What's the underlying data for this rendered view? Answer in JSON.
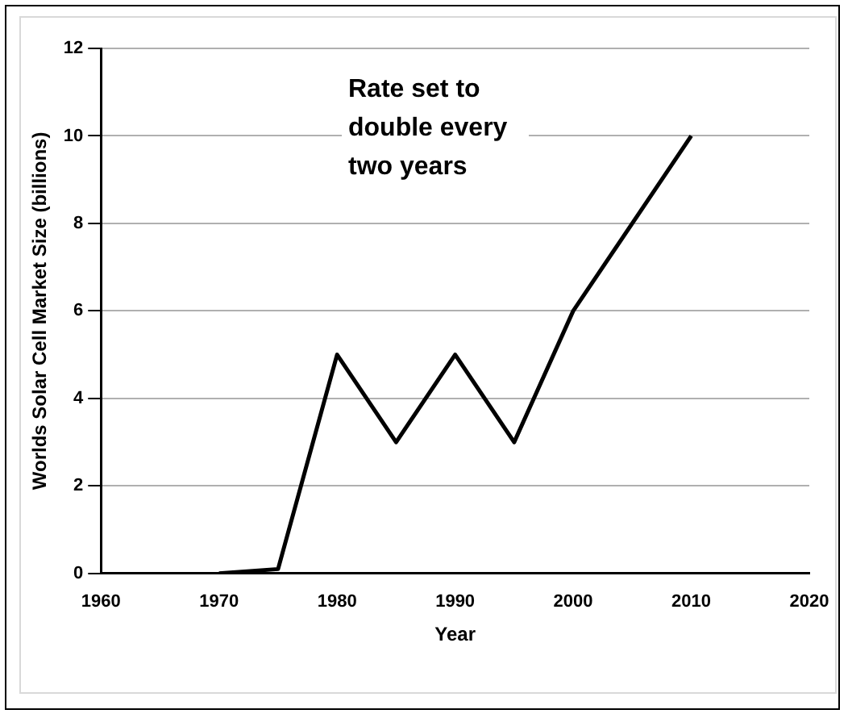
{
  "chart_data": {
    "type": "line",
    "xlabel": "Year",
    "ylabel": "Worlds Solar Cell Market Size (billions)",
    "x": [
      1970,
      1975,
      1980,
      1985,
      1990,
      1995,
      2000,
      2010
    ],
    "series": [
      {
        "color": "#000000",
        "values": [
          0,
          0.1,
          5,
          3,
          5,
          3,
          6,
          10
        ]
      }
    ],
    "xlim": [
      1960,
      2020
    ],
    "xticks": [
      1960,
      1970,
      1980,
      1990,
      2000,
      2010,
      2020
    ],
    "ylim": [
      0,
      12
    ],
    "yticks": [
      0,
      2,
      4,
      6,
      8,
      10,
      12
    ],
    "grid": "y",
    "legend": false,
    "marker": "none",
    "line_style": "solid",
    "annotations": [
      "Rate set to double every two years"
    ]
  }
}
